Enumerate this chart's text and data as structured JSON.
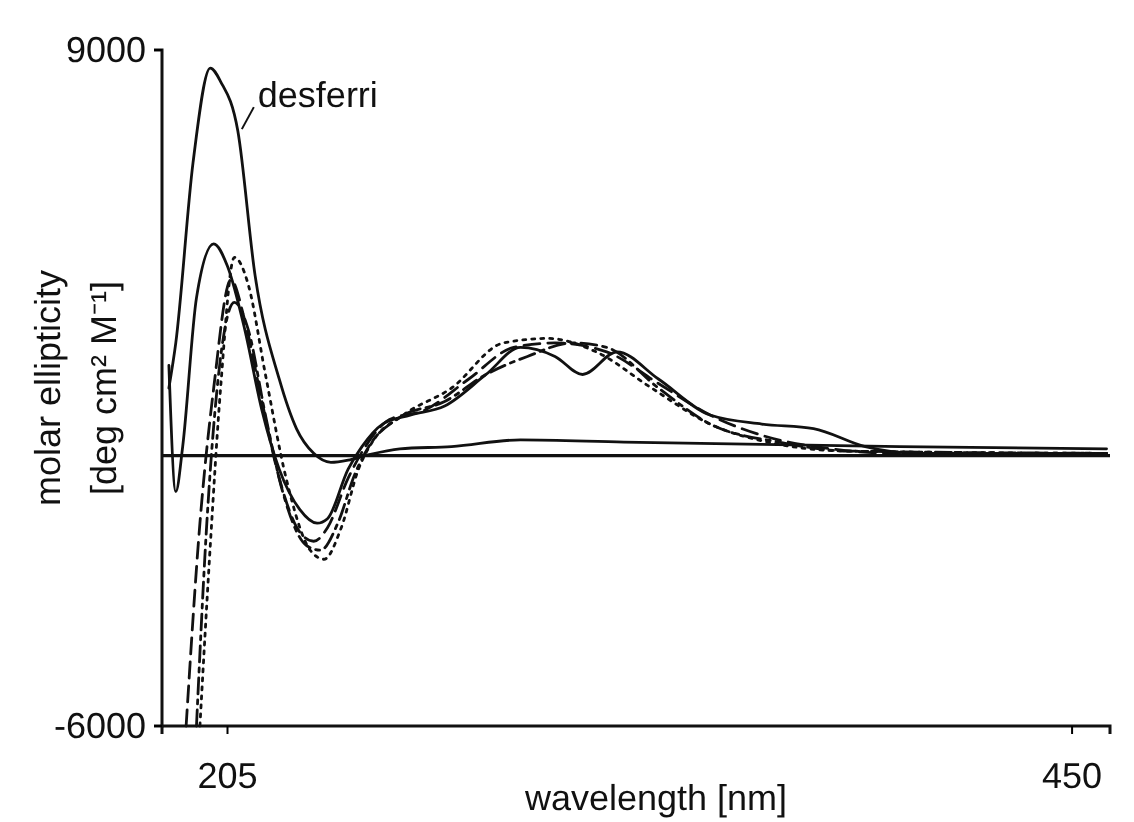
{
  "chart_data": {
    "type": "line",
    "xlabel": "wavelength [nm]",
    "ylabel": "molar ellipticity\n[deg cm² M⁻¹]",
    "xlim": [
      186,
      461
    ],
    "xticks": [
      205,
      450
    ],
    "ylim": [
      -6000,
      9000
    ],
    "yticks": [
      -6000,
      9000
    ],
    "grid": false,
    "legend": "top left",
    "marker": "none",
    "ref_lines": [
      {
        "axis": "y",
        "value": 0,
        "color": "#111111"
      }
    ],
    "series": [
      {
        "name": "desferri",
        "color": "#111111",
        "line_style": "solid",
        "x": [
          188,
          190,
          195,
          200,
          203,
          208,
          213,
          220,
          225,
          230,
          235,
          240,
          245,
          255,
          270,
          290,
          320,
          360,
          400,
          460
        ],
        "values": [
          1500,
          2500,
          6500,
          8600,
          8300,
          7200,
          4000,
          1700,
          600,
          50,
          -150,
          -100,
          0,
          150,
          200,
          350,
          300,
          250,
          200,
          150
        ]
      },
      {
        "color": "#111111",
        "line_style": "solid",
        "x": [
          188,
          190,
          192,
          196,
          201,
          205,
          210,
          215,
          220,
          226,
          231,
          234,
          240,
          244,
          250,
          258,
          268,
          280,
          290,
          300,
          308,
          318,
          330,
          345,
          360,
          375,
          390,
          405,
          460
        ],
        "values": [
          2000,
          -800,
          200,
          3500,
          4700,
          4200,
          2800,
          1000,
          -300,
          -1200,
          -1500,
          -1400,
          -300,
          200,
          700,
          900,
          1100,
          1800,
          2400,
          2200,
          1800,
          2300,
          1700,
          900,
          700,
          600,
          200,
          50,
          50
        ]
      },
      {
        "color": "#111111",
        "line_style": "dashed",
        "x": [
          193,
          197,
          201,
          206,
          210,
          215,
          220,
          226,
          230,
          234,
          240,
          245,
          252,
          262,
          275,
          288,
          300,
          315,
          330,
          345,
          360,
          380,
          400,
          460
        ],
        "values": [
          -6000,
          -1500,
          1500,
          3900,
          3000,
          1200,
          -500,
          -1700,
          -1900,
          -1600,
          -500,
          200,
          800,
          1000,
          1700,
          2400,
          2500,
          2300,
          1600,
          900,
          450,
          150,
          50,
          50
        ]
      },
      {
        "color": "#111111",
        "line_style": "dashdot",
        "x": [
          196,
          199,
          202,
          207,
          211,
          216,
          221,
          228,
          232,
          237,
          242,
          246,
          255,
          268,
          280,
          292,
          305,
          315,
          330,
          345,
          365,
          385,
          460
        ],
        "values": [
          -6000,
          -1500,
          1500,
          3400,
          2800,
          900,
          -800,
          -2000,
          -2100,
          -1500,
          -400,
          200,
          850,
          1200,
          1800,
          2200,
          2500,
          2400,
          1500,
          700,
          300,
          100,
          50
        ]
      },
      {
        "color": "#111111",
        "line_style": "dotted",
        "x": [
          197,
          200,
          203,
          207,
          211,
          216,
          222,
          229,
          233,
          238,
          243,
          247,
          256,
          270,
          285,
          298,
          312,
          328,
          345,
          365,
          385,
          460
        ],
        "values": [
          -6000,
          -2000,
          1500,
          4400,
          3800,
          1800,
          -500,
          -2100,
          -2300,
          -1600,
          -300,
          300,
          900,
          1500,
          2500,
          2600,
          2300,
          1500,
          700,
          250,
          100,
          50
        ]
      }
    ]
  }
}
